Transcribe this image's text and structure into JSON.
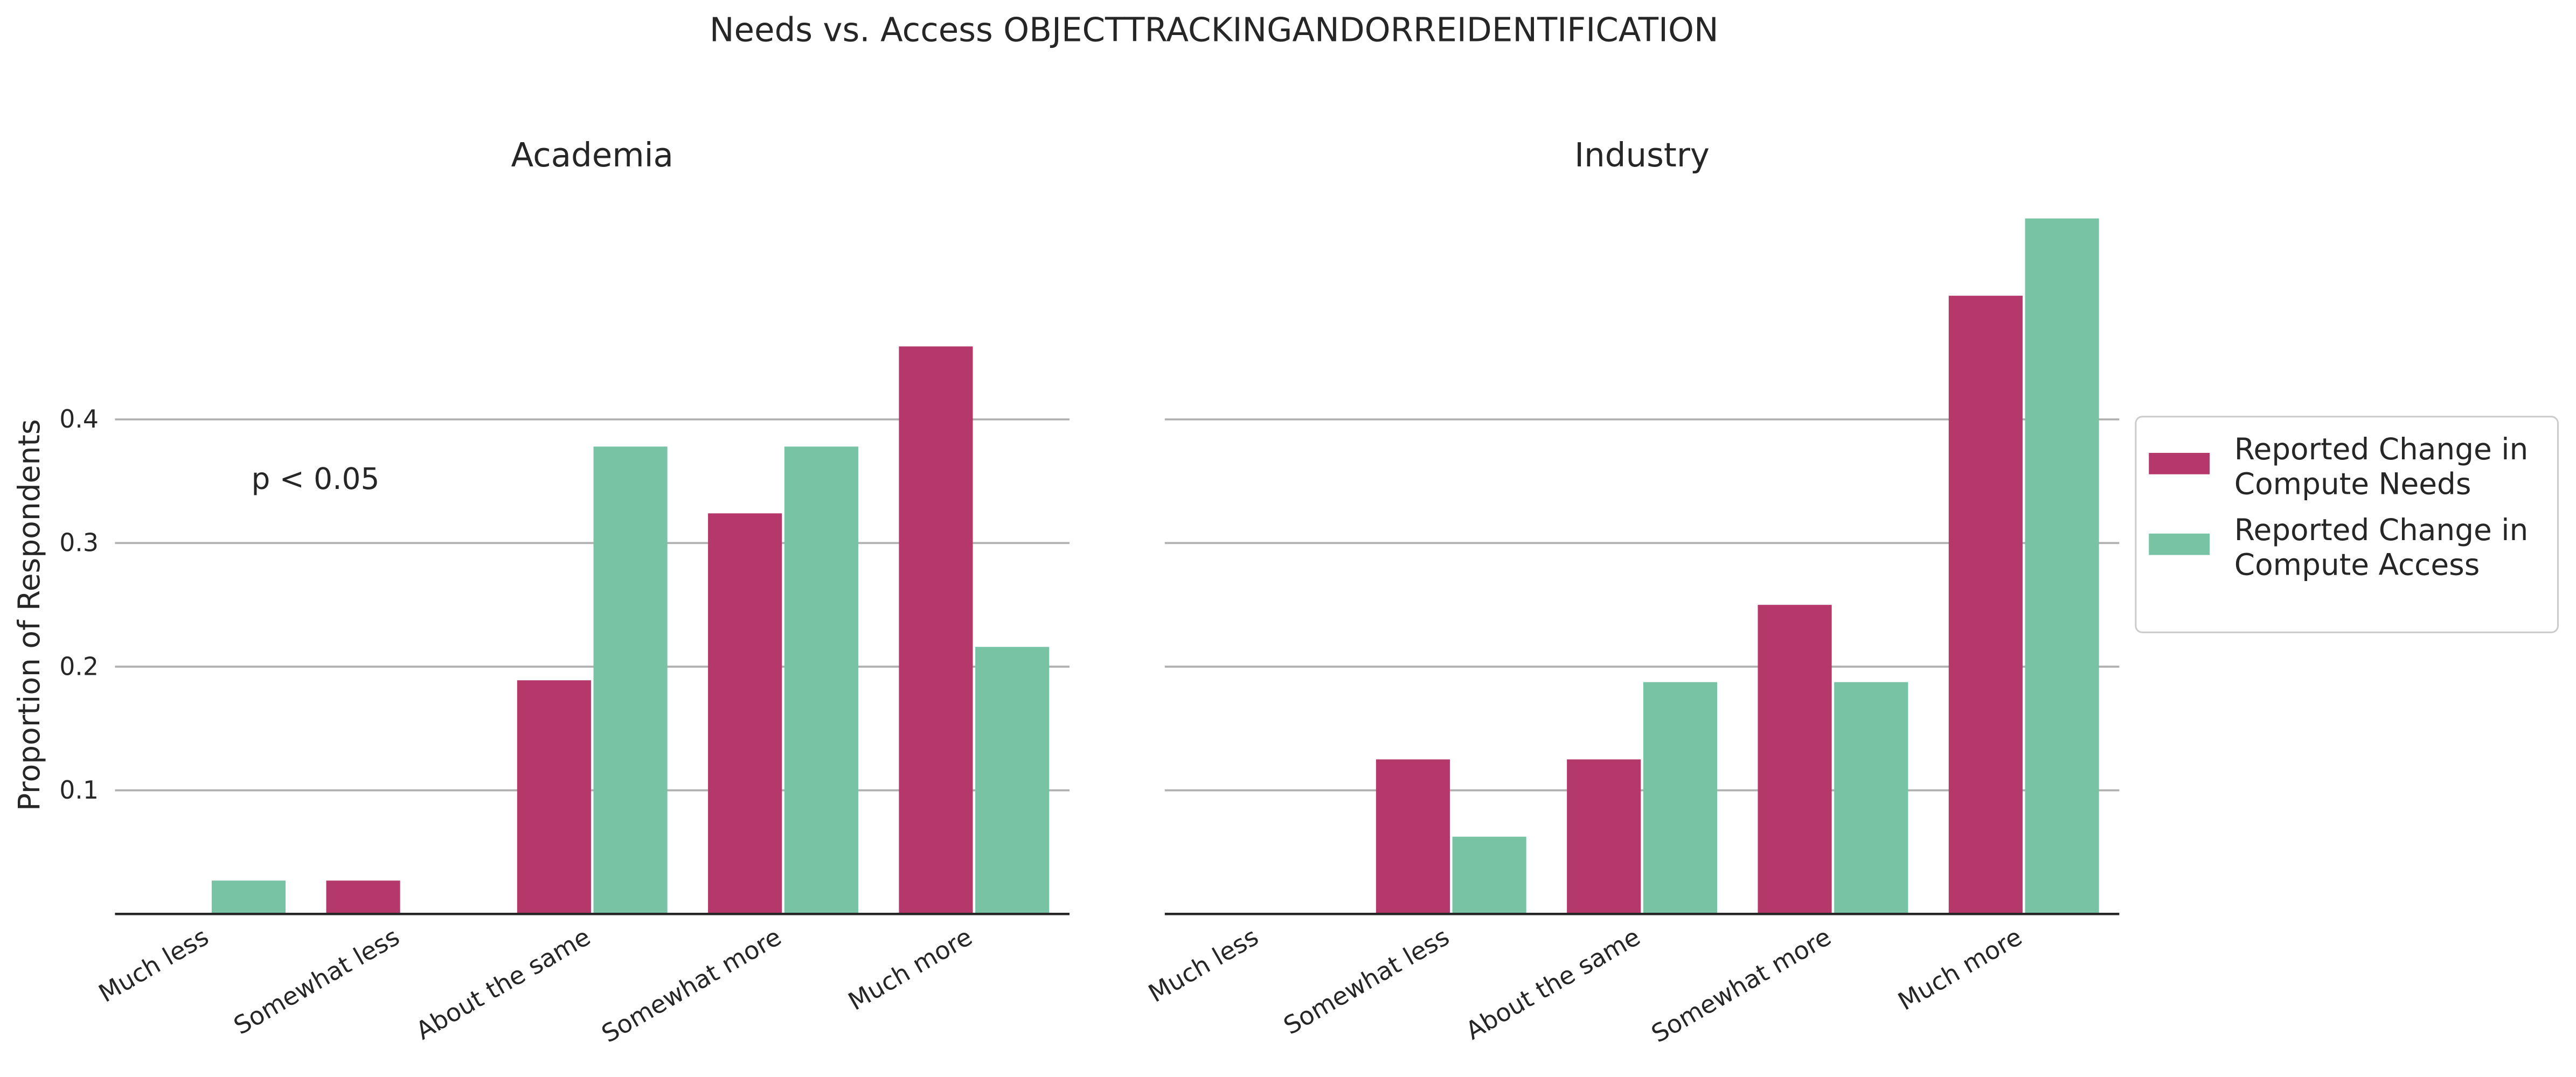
{
  "title": "Needs vs. Access OBJECTTRACKINGANDORREIDENTIFICATION",
  "chart_data": [
    {
      "type": "bar",
      "title": "Academia",
      "y_label": "Proportion of Respondents",
      "annotation": "p < 0.05",
      "categories": [
        "Much less",
        "Somewhat less",
        "About the same",
        "Somewhat more",
        "Much more"
      ],
      "series": [
        {
          "name": "Reported Change in Compute Needs",
          "color": "#b5386b",
          "values": [
            0,
            0.027,
            0.189,
            0.324,
            0.459
          ]
        },
        {
          "name": "Reported Change in Compute Access",
          "color": "#79c3a5",
          "values": [
            0.027,
            0,
            0.378,
            0.378,
            0.216
          ]
        }
      ],
      "ylim": [
        0,
        0.59
      ],
      "yticks": [
        0.1,
        0.2,
        0.3,
        0.4
      ],
      "grid": true
    },
    {
      "type": "bar",
      "title": "Industry",
      "legend": "right",
      "categories": [
        "Much less",
        "Somewhat less",
        "About the same",
        "Somewhat more",
        "Much more"
      ],
      "series": [
        {
          "name": "Reported Change in Compute Needs",
          "color": "#b5386b",
          "values": [
            0,
            0.125,
            0.125,
            0.25,
            0.5
          ]
        },
        {
          "name": "Reported Change in Compute Access",
          "color": "#79c3a5",
          "values": [
            0,
            0.0625,
            0.1875,
            0.1875,
            0.5625
          ]
        }
      ],
      "ylim": [
        0,
        0.59
      ],
      "yticks": [
        0.1,
        0.2,
        0.3,
        0.4
      ],
      "grid": true
    }
  ]
}
